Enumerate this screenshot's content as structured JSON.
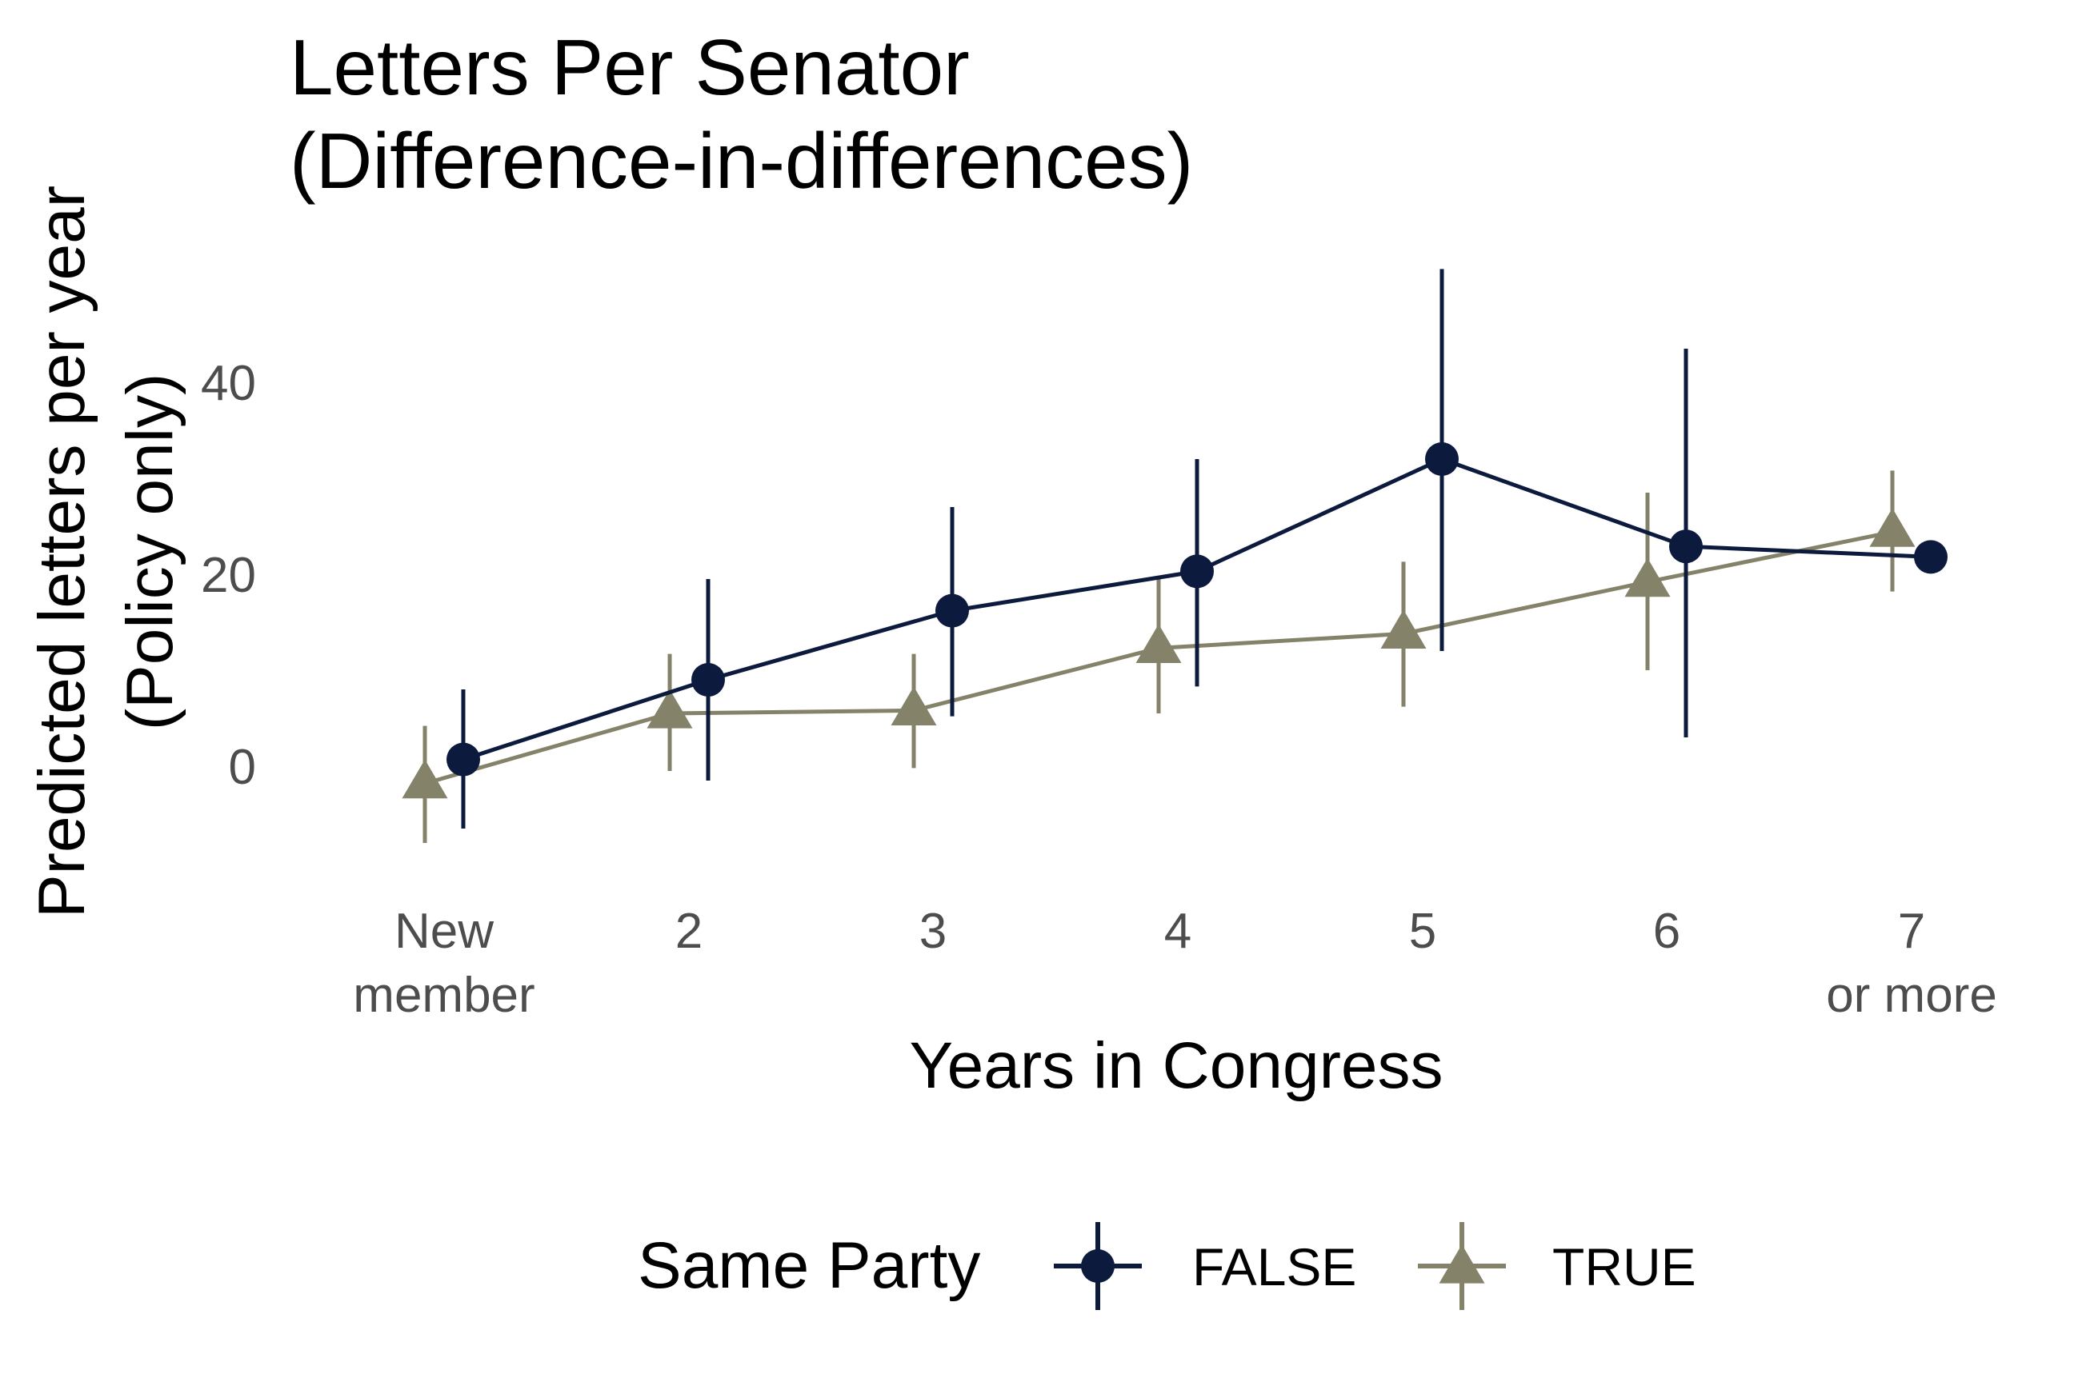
{
  "chart_data": {
    "type": "line",
    "title_lines": [
      "Letters Per Senator",
      "(Difference-in-differences)"
    ],
    "xlabel": "Years in Congress",
    "ylabel_lines": [
      "Predicted letters per year",
      "(Policy only)"
    ],
    "categories": [
      [
        "New",
        "member"
      ],
      [
        "2"
      ],
      [
        "3"
      ],
      [
        "4"
      ],
      [
        "5"
      ],
      [
        "6"
      ],
      [
        "7",
        "or more"
      ]
    ],
    "ylim": [
      -12,
      55
    ],
    "yticks": [
      "0",
      "20",
      "40"
    ],
    "grid": false,
    "legend": {
      "title": "Same Party",
      "position": "bottom"
    },
    "series": [
      {
        "name": "FALSE",
        "marker": "circle",
        "color": "#0b1a3d",
        "values": [
          0.7,
          9.0,
          16.2,
          20.3,
          32.0,
          22.9,
          21.8
        ],
        "lower": [
          -6.5,
          -1.5,
          5.2,
          8.3,
          12.0,
          3.0,
          null
        ],
        "upper": [
          8.0,
          19.5,
          27.0,
          32.0,
          51.8,
          43.5,
          null
        ]
      },
      {
        "name": "TRUE",
        "marker": "triangle",
        "color": "#85826a",
        "values": [
          -1.8,
          5.5,
          5.8,
          12.3,
          13.8,
          19.2,
          24.4
        ],
        "lower": [
          -8.0,
          -0.5,
          -0.2,
          5.5,
          6.2,
          10.0,
          18.2
        ],
        "upper": [
          4.2,
          11.7,
          11.7,
          19.5,
          21.3,
          28.5,
          30.8
        ]
      }
    ]
  }
}
